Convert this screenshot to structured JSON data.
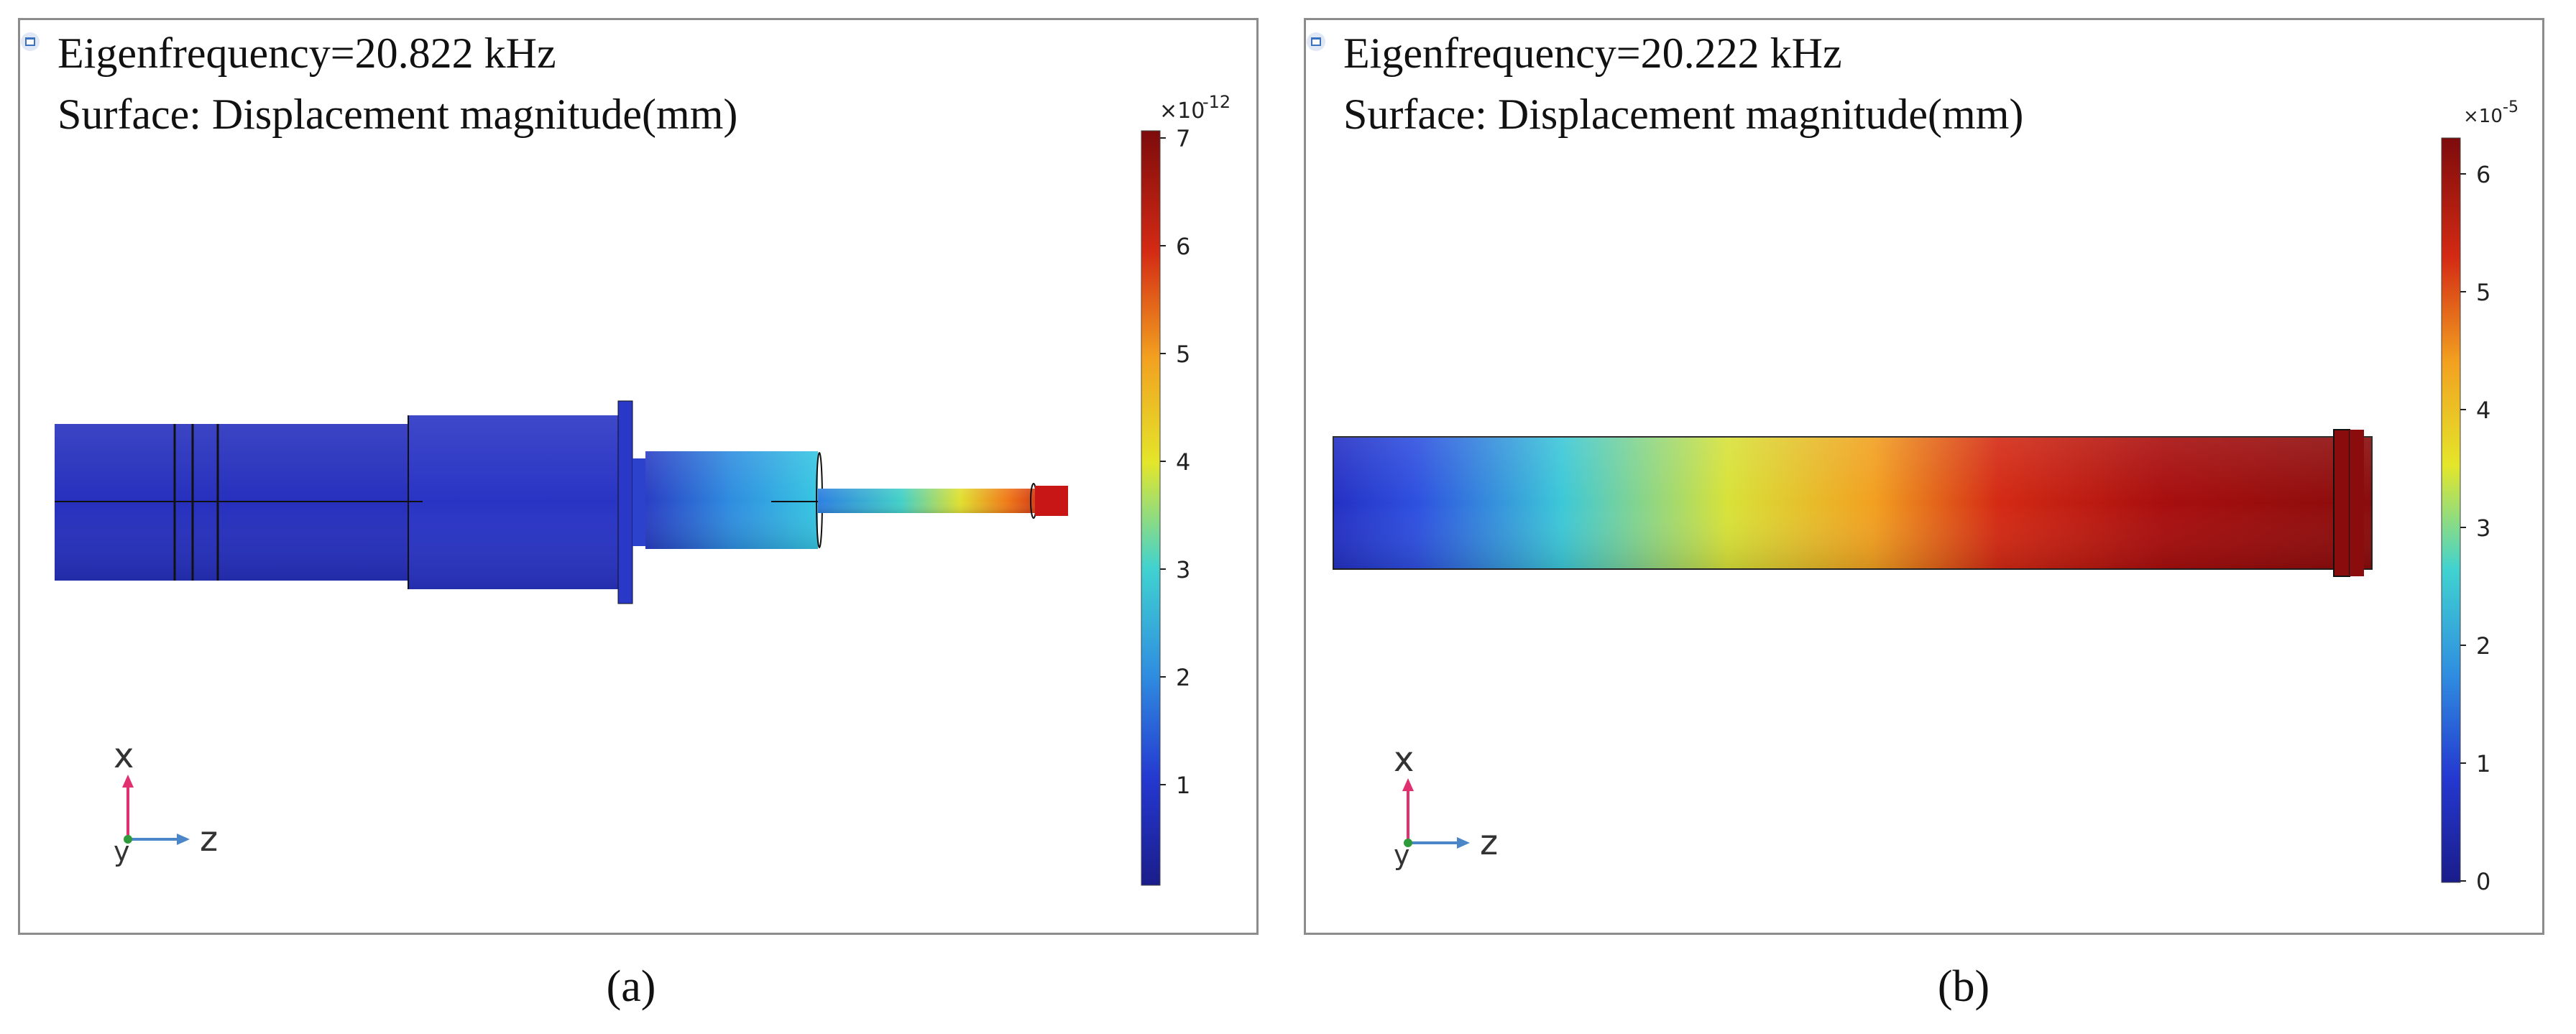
{
  "panels": [
    {
      "id": "a",
      "line1": "Eigenfrequency=20.822 kHz",
      "line2": "Surface: Displacement magnitude(mm)",
      "colorbar": {
        "multiplier": "×10",
        "exponent": "-12",
        "ticks": [
          "7",
          "6",
          "5",
          "4",
          "3",
          "2",
          "1"
        ],
        "min": 0,
        "max": 7,
        "colormap": "rainbow"
      },
      "axes": {
        "vertical": "x",
        "horizontal": "z",
        "third": "y"
      },
      "caption": "(a)"
    },
    {
      "id": "b",
      "line1": "Eigenfrequency=20.222 kHz",
      "line2": "Surface: Displacement magnitude(mm)",
      "colorbar": {
        "multiplier": "×10",
        "exponent": "-5",
        "ticks": [
          "6",
          "5",
          "4",
          "3",
          "2",
          "1",
          "0"
        ],
        "min": 0,
        "max": 6.3,
        "colormap": "rainbow"
      },
      "axes": {
        "vertical": "x",
        "horizontal": "z",
        "third": "y"
      },
      "caption": "(b)"
    }
  ],
  "colors": {
    "frame": "#8c8c8c",
    "cmap_low": "#1a1c8a",
    "cmap_mid": "#e4e62a",
    "cmap_high": "#7d0b0b",
    "axis_x": "#e03070",
    "axis_y": "#2e9a3c",
    "axis_z": "#4a86c8"
  }
}
